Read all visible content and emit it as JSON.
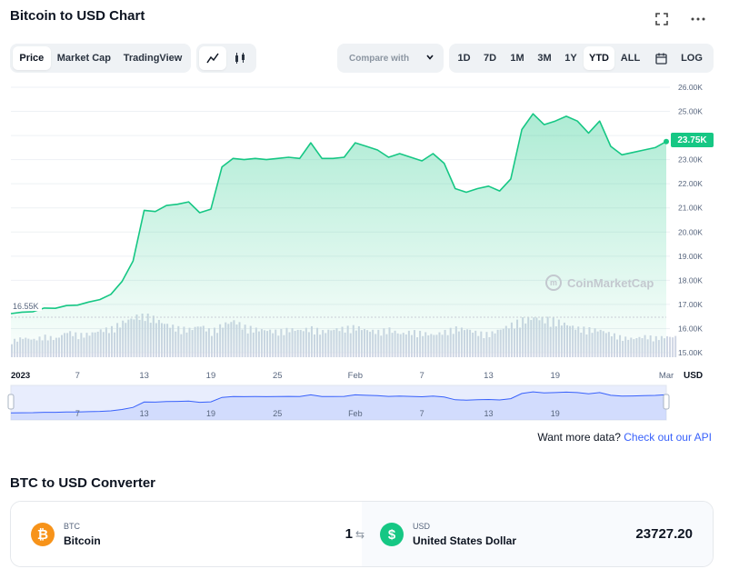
{
  "header": {
    "title": "Bitcoin to USD Chart"
  },
  "view_tabs": [
    {
      "label": "Price",
      "active": true
    },
    {
      "label": "Market Cap",
      "active": false
    },
    {
      "label": "TradingView",
      "active": false
    }
  ],
  "chart_style": [
    {
      "icon": "line-chart-icon",
      "active": true
    },
    {
      "icon": "candlestick-icon",
      "active": false
    }
  ],
  "compare": {
    "label": "Compare with"
  },
  "ranges": [
    {
      "label": "1D",
      "active": false
    },
    {
      "label": "7D",
      "active": false
    },
    {
      "label": "1M",
      "active": false
    },
    {
      "label": "3M",
      "active": false
    },
    {
      "label": "1Y",
      "active": false
    },
    {
      "label": "YTD",
      "active": true
    },
    {
      "label": "ALL",
      "active": false
    }
  ],
  "scale_toggle": "LOG",
  "chart": {
    "current_price_label": "23.75K",
    "min_price_label": "16.55K",
    "currency_label": "USD",
    "watermark": "CoinMarketCap",
    "line_color": "#16c784",
    "volume_color": "#cfd6e4",
    "navigator_color": "#3861fb"
  },
  "chart_data": {
    "type": "area",
    "title": "Bitcoin to USD Chart",
    "ylabel": "USD",
    "ylim": [
      15000,
      26000
    ],
    "y_ticks": [
      "26.00K",
      "25.00K",
      "24.00K",
      "23.00K",
      "22.00K",
      "21.00K",
      "20.00K",
      "19.00K",
      "18.00K",
      "17.00K",
      "16.00K",
      "15.00K"
    ],
    "x_ticks": [
      "2023",
      "7",
      "13",
      "19",
      "25",
      "Feb",
      "7",
      "13",
      "19",
      "Mar"
    ],
    "x_tick_days": [
      1,
      7,
      13,
      19,
      25,
      32,
      38,
      44,
      50,
      60
    ],
    "series": [
      {
        "day": [
          1,
          2,
          3,
          4,
          5,
          6,
          7,
          8,
          9,
          10,
          11,
          12,
          13,
          14,
          15,
          16,
          17,
          18,
          19,
          20,
          21,
          22,
          23,
          24,
          25,
          26,
          27,
          28,
          29,
          30,
          31,
          32,
          33,
          34,
          35,
          36,
          37,
          38,
          39,
          40,
          41,
          42,
          43,
          44,
          45,
          46,
          47,
          48,
          49,
          50,
          51,
          52,
          53,
          54,
          55,
          56,
          57,
          58,
          59,
          60
        ],
        "values": [
          16620,
          16680,
          16700,
          16850,
          16840,
          16950,
          16970,
          17100,
          17200,
          17420,
          17950,
          18800,
          20900,
          20850,
          21100,
          21150,
          21250,
          20800,
          20950,
          22700,
          23050,
          23000,
          23050,
          23000,
          23050,
          23100,
          23050,
          23700,
          23050,
          23050,
          23100,
          23700,
          23550,
          23400,
          23100,
          23250,
          23100,
          22950,
          23250,
          22850,
          21800,
          21650,
          21800,
          21900,
          21700,
          22200,
          24250,
          24900,
          24450,
          24600,
          24800,
          24600,
          24100,
          24600,
          23550,
          23200,
          23300,
          23400,
          23500,
          23750
        ]
      }
    ],
    "volume_relative": [
      0.35,
      0.42,
      0.38,
      0.45,
      0.4,
      0.55,
      0.48,
      0.5,
      0.58,
      0.62,
      0.75,
      0.85,
      0.95,
      0.8,
      0.7,
      0.62,
      0.6,
      0.68,
      0.55,
      0.7,
      0.78,
      0.65,
      0.6,
      0.58,
      0.55,
      0.6,
      0.58,
      0.62,
      0.55,
      0.6,
      0.62,
      0.65,
      0.58,
      0.55,
      0.6,
      0.5,
      0.55,
      0.52,
      0.48,
      0.55,
      0.62,
      0.6,
      0.52,
      0.5,
      0.6,
      0.7,
      0.8,
      0.85,
      0.82,
      0.78,
      0.7,
      0.62,
      0.6,
      0.58,
      0.5,
      0.42,
      0.4,
      0.45,
      0.42,
      0.44
    ],
    "grid": true,
    "legend": "none"
  },
  "footer": {
    "prompt": "Want more data?",
    "link": "Check out our API"
  },
  "converter": {
    "title": "BTC to USD Converter",
    "from": {
      "symbol": "BTC",
      "name": "Bitcoin",
      "amount": "1",
      "coin_glyph": "₿",
      "color": "#f7931a"
    },
    "to": {
      "symbol": "USD",
      "name": "United States Dollar",
      "amount": "23727.20",
      "coin_glyph": "$",
      "color": "#16c784"
    }
  }
}
